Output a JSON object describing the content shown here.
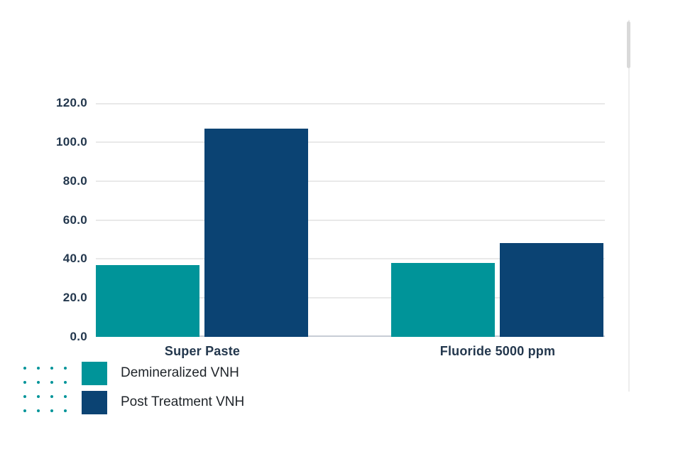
{
  "chart_data": {
    "type": "bar",
    "title": "",
    "xlabel": "",
    "ylabel": "",
    "categories": [
      "Super Paste",
      "Fluoride 5000 ppm"
    ],
    "series": [
      {
        "name": "Demineralized VNH",
        "color": "#009499",
        "values": [
          37,
          38
        ]
      },
      {
        "name": "Post Treatment VNH",
        "color": "#0b4373",
        "values": [
          107,
          48
        ]
      }
    ],
    "ylim": [
      0,
      120
    ],
    "yticks": [
      0,
      20,
      40,
      60,
      80,
      100,
      120
    ],
    "ytick_labels": [
      "0.0",
      "20.0",
      "40.0",
      "60.0",
      "80.0",
      "100.0",
      "120.0"
    ],
    "grid": true,
    "legend_position": "bottom-left"
  },
  "theme": {
    "background": "#ffffff",
    "axis_text_color": "#23374d",
    "legend_text_color": "#1f2429",
    "gridline_color": "#e9e9e9",
    "baseline_color": "#c7cdd5",
    "dot_pattern_color": "#009499",
    "scrollbar_track_color": "#ededed",
    "scrollbar_thumb_color": "#d9d9d9"
  }
}
